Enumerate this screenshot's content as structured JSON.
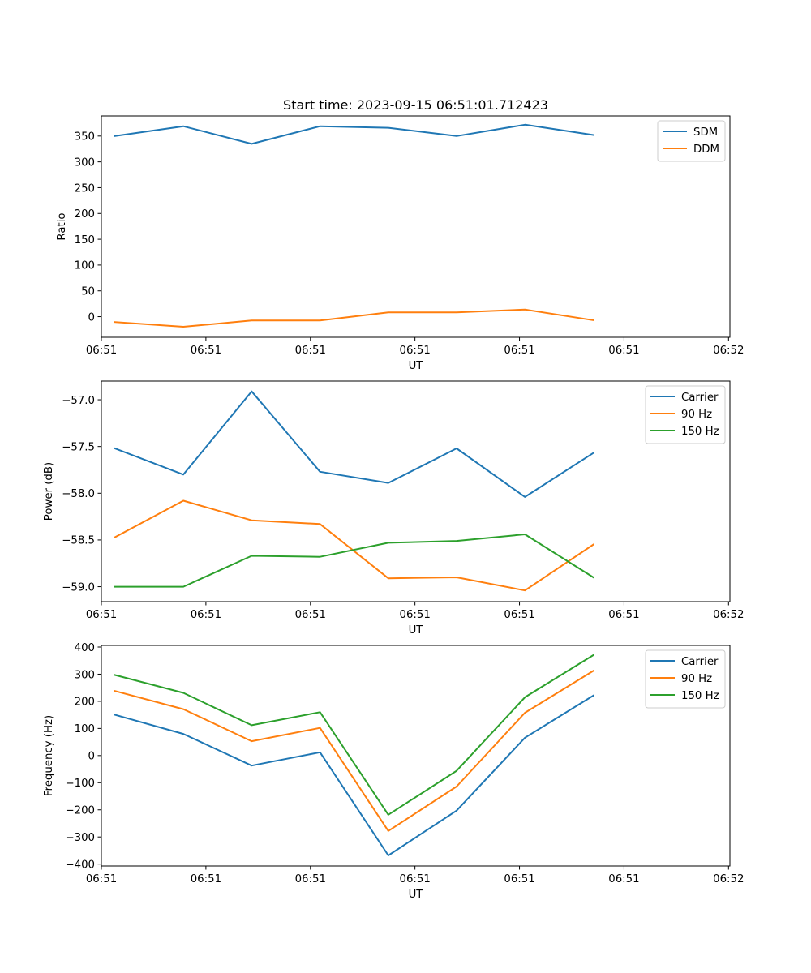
{
  "chart_data": [
    {
      "type": "line",
      "title": "Start time: 2023-09-15 06:51:01.712423",
      "xlabel": "UT",
      "ylabel": "Ratio",
      "x": [
        1,
        2,
        3,
        4,
        5,
        6,
        7,
        8
      ],
      "xlim": [
        0.8,
        10
      ],
      "xticks": [
        0.8,
        2.33,
        3.86,
        5.39,
        6.92,
        8.45,
        9.98
      ],
      "xtick_labels": [
        "06:51",
        "06:51",
        "06:51",
        "06:51",
        "06:51",
        "06:51",
        "06:52"
      ],
      "ylim": [
        -40,
        389
      ],
      "yticks": [
        0,
        50,
        100,
        150,
        200,
        250,
        300,
        350
      ],
      "ytick_labels": [
        "0",
        "50",
        "100",
        "150",
        "200",
        "250",
        "300",
        "350"
      ],
      "grid": false,
      "legend_position": "top-right",
      "series": [
        {
          "name": "SDM",
          "color": "#1f77b4",
          "values": [
            350,
            369,
            335,
            369,
            366,
            350,
            372,
            352
          ]
        },
        {
          "name": "DDM",
          "color": "#ff7f0e",
          "values": [
            -10.5,
            -19.5,
            -7.4,
            -7.4,
            8.4,
            8.4,
            13.7,
            -6.8
          ]
        }
      ]
    },
    {
      "type": "line",
      "title": "",
      "xlabel": "UT",
      "ylabel": "Power (dB)",
      "x": [
        1,
        2,
        3,
        4,
        5,
        6,
        7,
        8
      ],
      "xlim": [
        0.8,
        10
      ],
      "xticks": [
        0.8,
        2.33,
        3.86,
        5.39,
        6.92,
        8.45,
        9.98
      ],
      "xtick_labels": [
        "06:51",
        "06:51",
        "06:51",
        "06:51",
        "06:51",
        "06:51",
        "06:52"
      ],
      "ylim": [
        -59.16,
        -56.8
      ],
      "yticks": [
        -59.0,
        -58.5,
        -58.0,
        -57.5,
        -57.0
      ],
      "ytick_labels": [
        "−59.0",
        "−58.5",
        "−58.0",
        "−57.5",
        "−57.0"
      ],
      "grid": false,
      "legend_position": "top-right",
      "series": [
        {
          "name": "Carrier",
          "color": "#1f77b4",
          "values": [
            -57.52,
            -57.8,
            -56.91,
            -57.77,
            -57.89,
            -57.52,
            -58.04,
            -57.57
          ]
        },
        {
          "name": "90 Hz",
          "color": "#ff7f0e",
          "values": [
            -58.47,
            -58.08,
            -58.29,
            -58.33,
            -58.91,
            -58.9,
            -59.04,
            -58.55
          ]
        },
        {
          "name": "150 Hz",
          "color": "#2ca02c",
          "values": [
            -59.0,
            -59.0,
            -58.67,
            -58.68,
            -58.53,
            -58.51,
            -58.44,
            -58.9
          ]
        }
      ]
    },
    {
      "type": "line",
      "title": "",
      "xlabel": "UT",
      "ylabel": "Frequency (Hz)",
      "x": [
        1,
        2,
        3,
        4,
        5,
        6,
        7,
        8
      ],
      "xlim": [
        0.8,
        10
      ],
      "xticks": [
        0.8,
        2.33,
        3.86,
        5.39,
        6.92,
        8.45,
        9.98
      ],
      "xtick_labels": [
        "06:51",
        "06:51",
        "06:51",
        "06:51",
        "06:51",
        "06:51",
        "06:52"
      ],
      "ylim": [
        -407,
        406
      ],
      "yticks": [
        -400,
        -300,
        -200,
        -100,
        0,
        100,
        200,
        300,
        400
      ],
      "ytick_labels": [
        "−400",
        "−300",
        "−200",
        "−100",
        "0",
        "100",
        "200",
        "300",
        "400"
      ],
      "grid": false,
      "legend_position": "top-right",
      "series": [
        {
          "name": "Carrier",
          "color": "#1f77b4",
          "values": [
            150,
            80,
            -37,
            12,
            -368,
            -203,
            66,
            221
          ]
        },
        {
          "name": "90 Hz",
          "color": "#ff7f0e",
          "values": [
            238,
            171,
            53,
            102,
            -278,
            -114,
            158,
            312
          ]
        },
        {
          "name": "150 Hz",
          "color": "#2ca02c",
          "values": [
            297,
            231,
            112,
            160,
            -218,
            -56,
            215,
            370
          ]
        }
      ]
    }
  ]
}
